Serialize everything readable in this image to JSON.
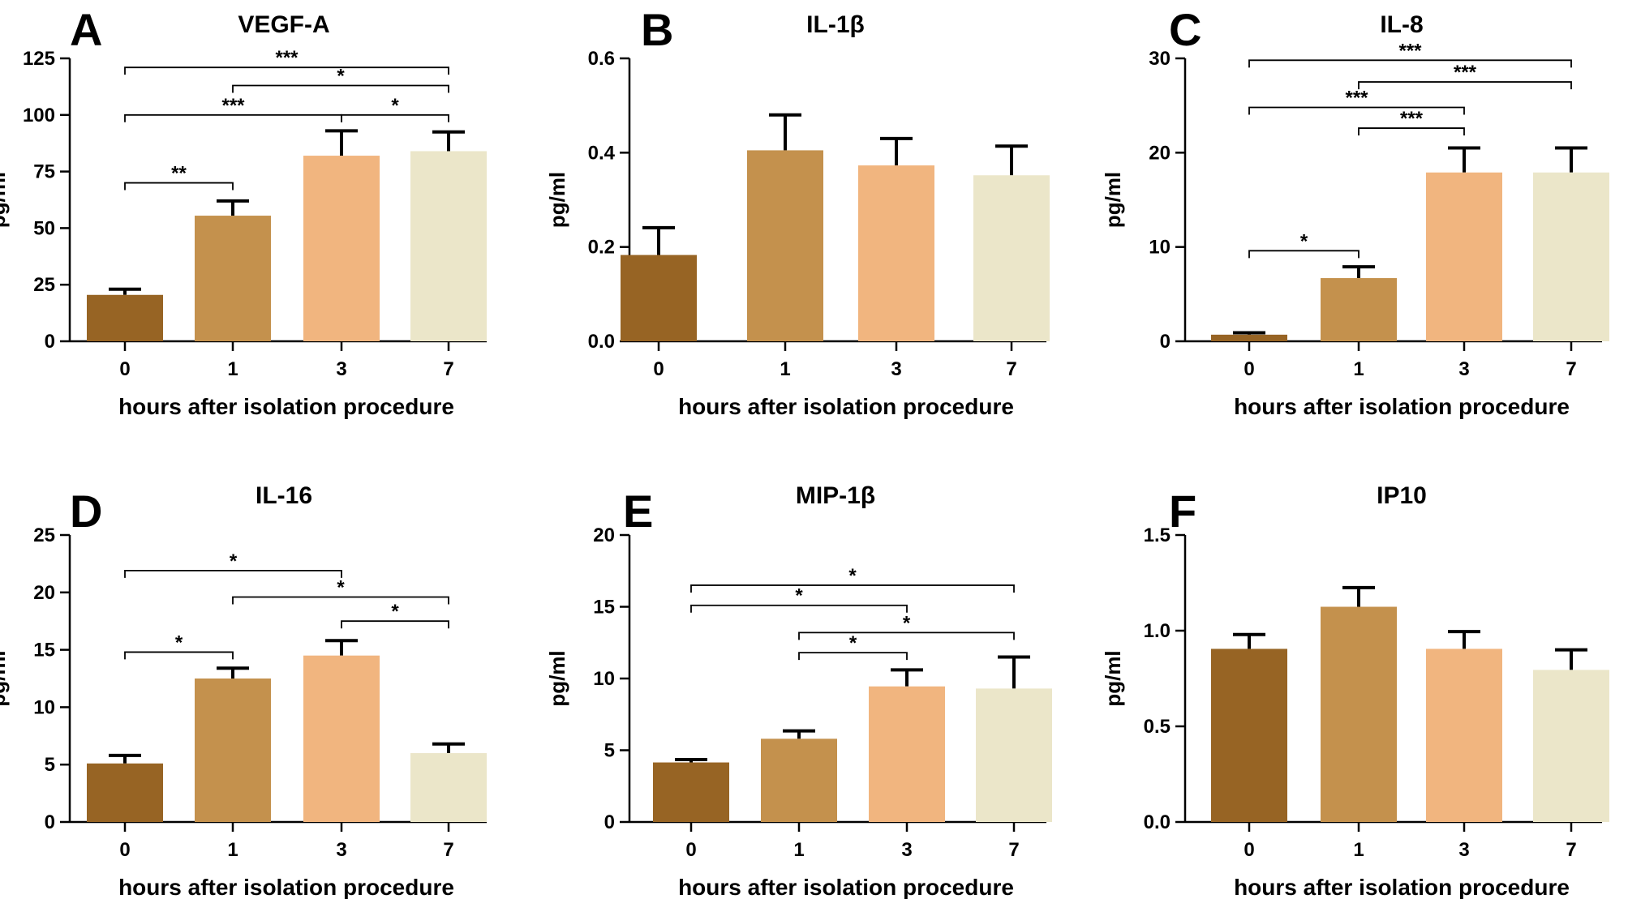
{
  "figure": {
    "xlabel": "hours after isolation procedure",
    "ylabel": "pg/ml"
  },
  "chart_data": [
    {
      "panel": "A",
      "type": "bar",
      "title": "VEGF-A",
      "categories": [
        "0",
        "1",
        "3",
        "7"
      ],
      "values": [
        20.5,
        55.5,
        82,
        84
      ],
      "errors": [
        2.5,
        6.5,
        11,
        8.5
      ],
      "colors": [
        "#976424",
        "#c4914d",
        "#f1b57f",
        "#ebe6c9"
      ],
      "ylim": [
        0,
        125
      ],
      "yticks": [
        0,
        25,
        50,
        75,
        100,
        125
      ],
      "ytick_labels": [
        "0",
        "25",
        "50",
        "75",
        "100",
        "125"
      ],
      "xlabel": "hours after isolation procedure",
      "ylabel": "pg/ml",
      "significance": [
        {
          "from": 0,
          "to": 1,
          "y": 70,
          "label": "**"
        },
        {
          "from": 0,
          "to": 2,
          "y": 100,
          "label": "***"
        },
        {
          "from": 2,
          "to": 3,
          "y": 100,
          "label": "*"
        },
        {
          "from": 1,
          "to": 3,
          "y": 113,
          "label": "*"
        },
        {
          "from": 0,
          "to": 3,
          "y": 121,
          "label": "***"
        }
      ]
    },
    {
      "panel": "B",
      "type": "bar",
      "title": "IL-1β",
      "categories": [
        "0",
        "1",
        "3",
        "7"
      ],
      "values": [
        0.183,
        0.405,
        0.373,
        0.352
      ],
      "errors": [
        0.058,
        0.075,
        0.057,
        0.062
      ],
      "colors": [
        "#976424",
        "#c4914d",
        "#f1b57f",
        "#ebe6c9"
      ],
      "ylim": [
        0,
        0.6
      ],
      "yticks": [
        0,
        0.2,
        0.4,
        0.6
      ],
      "ytick_labels": [
        "0.0",
        "0.2",
        "0.4",
        "0.6"
      ],
      "xlabel": "hours after isolation procedure",
      "ylabel": "pg/ml",
      "significance": []
    },
    {
      "panel": "C",
      "type": "bar",
      "title": "IL-8",
      "categories": [
        "0",
        "1",
        "3",
        "7"
      ],
      "values": [
        0.7,
        6.7,
        17.9,
        17.9
      ],
      "errors": [
        0.2,
        1.2,
        2.6,
        2.6
      ],
      "colors": [
        "#976424",
        "#c4914d",
        "#f1b57f",
        "#ebe6c9"
      ],
      "ylim": [
        0,
        30
      ],
      "yticks": [
        0,
        10,
        20,
        30
      ],
      "ytick_labels": [
        "0",
        "10",
        "20",
        "30"
      ],
      "xlabel": "hours after isolation procedure",
      "ylabel": "pg/ml",
      "significance": [
        {
          "from": 0,
          "to": 1,
          "y": 9.6,
          "label": "*"
        },
        {
          "from": 1,
          "to": 2,
          "y": 22.6,
          "label": "***"
        },
        {
          "from": 0,
          "to": 2,
          "y": 24.8,
          "label": "***"
        },
        {
          "from": 1,
          "to": 3,
          "y": 27.5,
          "label": "***"
        },
        {
          "from": 0,
          "to": 3,
          "y": 29.8,
          "label": "***"
        }
      ]
    },
    {
      "panel": "D",
      "type": "bar",
      "title": "IL-16",
      "categories": [
        "0",
        "1",
        "3",
        "7"
      ],
      "values": [
        5.1,
        12.5,
        14.5,
        6.0
      ],
      "errors": [
        0.7,
        0.9,
        1.3,
        0.8
      ],
      "colors": [
        "#976424",
        "#c4914d",
        "#f1b57f",
        "#ebe6c9"
      ],
      "ylim": [
        0,
        25
      ],
      "yticks": [
        0,
        5,
        10,
        15,
        20,
        25
      ],
      "ytick_labels": [
        "0",
        "5",
        "10",
        "15",
        "20",
        "25"
      ],
      "xlabel": "hours after isolation procedure",
      "ylabel": "pg/ml",
      "significance": [
        {
          "from": 0,
          "to": 1,
          "y": 14.8,
          "label": "*"
        },
        {
          "from": 2,
          "to": 3,
          "y": 17.5,
          "label": "*"
        },
        {
          "from": 1,
          "to": 3,
          "y": 19.6,
          "label": "*"
        },
        {
          "from": 0,
          "to": 2,
          "y": 21.9,
          "label": "*"
        }
      ]
    },
    {
      "panel": "E",
      "type": "bar",
      "title": "MIP-1β",
      "categories": [
        "0",
        "1",
        "3",
        "7"
      ],
      "values": [
        4.15,
        5.8,
        9.45,
        9.3
      ],
      "errors": [
        0.2,
        0.55,
        1.15,
        2.2
      ],
      "colors": [
        "#976424",
        "#c4914d",
        "#f1b57f",
        "#ebe6c9"
      ],
      "ylim": [
        0,
        20
      ],
      "yticks": [
        0,
        5,
        10,
        15,
        20
      ],
      "ytick_labels": [
        "0",
        "5",
        "10",
        "15",
        "20"
      ],
      "xlabel": "hours after isolation procedure",
      "ylabel": "pg/ml",
      "significance": [
        {
          "from": 1,
          "to": 2,
          "y": 11.8,
          "label": "*"
        },
        {
          "from": 1,
          "to": 3,
          "y": 13.2,
          "label": "*"
        },
        {
          "from": 0,
          "to": 2,
          "y": 15.1,
          "label": "*"
        },
        {
          "from": 0,
          "to": 3,
          "y": 16.5,
          "label": "*"
        }
      ]
    },
    {
      "panel": "F",
      "type": "bar",
      "title": "IP10",
      "categories": [
        "0",
        "1",
        "3",
        "7"
      ],
      "values": [
        0.905,
        1.125,
        0.905,
        0.795
      ],
      "errors": [
        0.075,
        0.1,
        0.09,
        0.105
      ],
      "colors": [
        "#976424",
        "#c4914d",
        "#f1b57f",
        "#ebe6c9"
      ],
      "ylim": [
        0,
        1.5
      ],
      "yticks": [
        0,
        0.5,
        1.0,
        1.5
      ],
      "ytick_labels": [
        "0.0",
        "0.5",
        "1.0",
        "1.5"
      ],
      "xlabel": "hours after isolation procedure",
      "ylabel": "pg/ml",
      "significance": []
    }
  ]
}
